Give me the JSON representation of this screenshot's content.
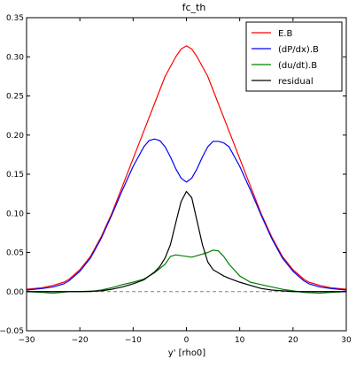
{
  "chart_data": {
    "type": "line",
    "title": "fc_th",
    "xlabel": "y' [rho0]",
    "ylabel": "",
    "xlim": [
      -30,
      30
    ],
    "ylim": [
      -0.05,
      0.35
    ],
    "xticks": [
      -30,
      -20,
      -10,
      0,
      10,
      20,
      30
    ],
    "yticks": [
      -0.05,
      0.0,
      0.05,
      0.1,
      0.15,
      0.2,
      0.25,
      0.3,
      0.35
    ],
    "xtick_labels": [
      "−30",
      "−20",
      "−10",
      "0",
      "10",
      "20",
      "30"
    ],
    "ytick_labels": [
      "−0.05",
      "0.00",
      "0.05",
      "0.10",
      "0.15",
      "0.20",
      "0.25",
      "0.30",
      "0.35"
    ],
    "legend_position": "top-right",
    "grid": false,
    "reference_line": {
      "y": 0,
      "style": "dashed",
      "color": "#808080"
    },
    "series": [
      {
        "name": "E.B",
        "color": "#ff0000",
        "x": [
          -30,
          -27,
          -25,
          -23,
          -22,
          -20,
          -18,
          -16,
          -14,
          -12,
          -10,
          -8,
          -6,
          -4,
          -2,
          -1,
          0,
          1,
          2,
          4,
          6,
          8,
          10,
          12,
          14,
          16,
          18,
          20,
          22,
          23,
          25,
          27,
          30
        ],
        "y": [
          0.003,
          0.005,
          0.008,
          0.012,
          0.016,
          0.028,
          0.045,
          0.07,
          0.1,
          0.135,
          0.17,
          0.205,
          0.24,
          0.275,
          0.3,
          0.31,
          0.314,
          0.31,
          0.3,
          0.275,
          0.24,
          0.205,
          0.17,
          0.135,
          0.1,
          0.07,
          0.045,
          0.028,
          0.016,
          0.012,
          0.008,
          0.005,
          0.003
        ]
      },
      {
        "name": "(dP/dx).B",
        "color": "#0000ff",
        "x": [
          -30,
          -27,
          -25,
          -23,
          -22,
          -20,
          -18,
          -16,
          -14,
          -12,
          -10,
          -8,
          -7,
          -6,
          -5,
          -4,
          -3,
          -2,
          -1,
          0,
          1,
          2,
          3,
          4,
          5,
          6,
          7,
          8,
          10,
          12,
          14,
          16,
          18,
          20,
          22,
          23,
          25,
          27,
          30
        ],
        "y": [
          0.002,
          0.004,
          0.006,
          0.01,
          0.014,
          0.026,
          0.043,
          0.068,
          0.098,
          0.13,
          0.16,
          0.185,
          0.193,
          0.195,
          0.193,
          0.185,
          0.172,
          0.157,
          0.145,
          0.14,
          0.145,
          0.157,
          0.172,
          0.185,
          0.192,
          0.192,
          0.19,
          0.185,
          0.16,
          0.13,
          0.098,
          0.068,
          0.043,
          0.026,
          0.014,
          0.01,
          0.006,
          0.004,
          0.002
        ]
      },
      {
        "name": "(du/dt).B",
        "color": "#008000",
        "x": [
          -30,
          -27,
          -25,
          -22,
          -20,
          -18,
          -16,
          -14,
          -12,
          -10,
          -8,
          -6,
          -4,
          -3,
          -2,
          -1,
          0,
          1,
          2,
          3,
          4,
          5,
          6,
          7,
          8,
          10,
          12,
          14,
          16,
          18,
          20,
          22,
          25,
          27,
          30
        ],
        "y": [
          0.0,
          -0.001,
          -0.002,
          0.0,
          0.0,
          0.0,
          0.002,
          0.005,
          0.009,
          0.012,
          0.016,
          0.024,
          0.035,
          0.045,
          0.047,
          0.046,
          0.045,
          0.044,
          0.046,
          0.048,
          0.05,
          0.053,
          0.052,
          0.045,
          0.035,
          0.02,
          0.012,
          0.009,
          0.006,
          0.003,
          0.001,
          -0.001,
          -0.002,
          -0.001,
          0.0
        ]
      },
      {
        "name": "residual",
        "color": "#000000",
        "x": [
          -30,
          -20,
          -16,
          -14,
          -12,
          -10,
          -8,
          -6,
          -5,
          -4,
          -3,
          -2,
          -1,
          0,
          1,
          2,
          3,
          4,
          5,
          6,
          7,
          8,
          10,
          12,
          14,
          16,
          18,
          20,
          30
        ],
        "y": [
          0.0,
          0.0,
          0.001,
          0.003,
          0.006,
          0.01,
          0.015,
          0.025,
          0.032,
          0.043,
          0.06,
          0.088,
          0.115,
          0.128,
          0.12,
          0.09,
          0.06,
          0.038,
          0.028,
          0.024,
          0.02,
          0.017,
          0.012,
          0.008,
          0.004,
          0.002,
          0.001,
          0.0,
          0.0
        ]
      }
    ]
  }
}
